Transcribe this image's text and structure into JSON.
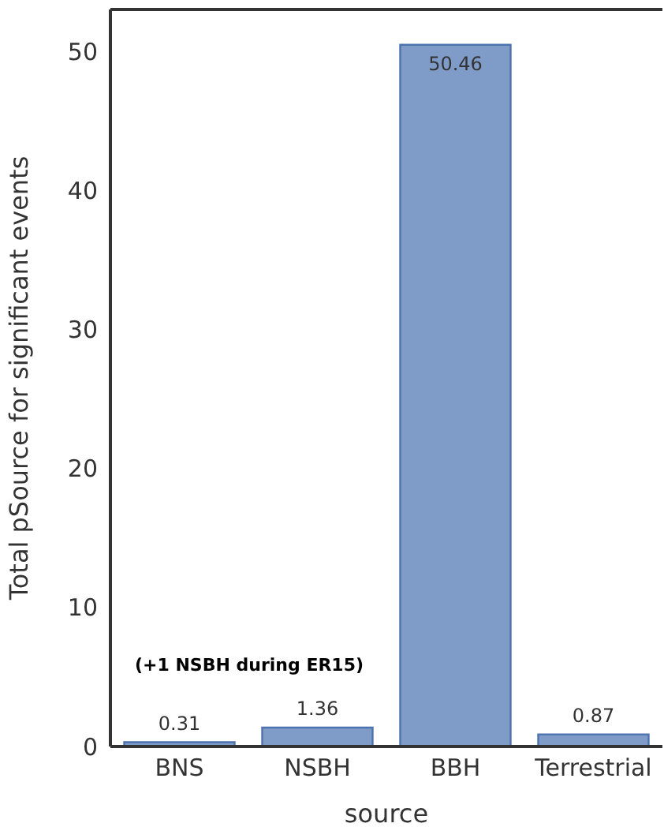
{
  "chart_data": {
    "type": "bar",
    "xlabel": "source",
    "ylabel": "Total pSource for significant events",
    "categories": [
      "BNS",
      "NSBH",
      "BBH",
      "Terrestrial"
    ],
    "values": [
      0.31,
      1.36,
      50.46,
      0.87
    ],
    "color": "#7f9cc9",
    "ylim": [
      0,
      53
    ],
    "yticks": [
      0,
      10,
      20,
      30,
      40,
      50
    ],
    "data_labels": true,
    "grid": false,
    "legend": false,
    "annotations": [
      "(+1 NSBH during ER15)"
    ]
  }
}
